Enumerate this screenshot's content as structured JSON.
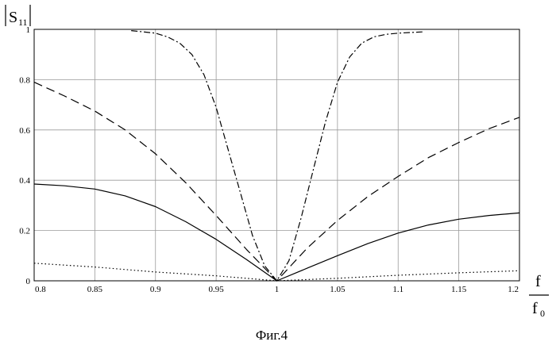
{
  "chart_data": {
    "type": "line",
    "ylabel": "|S11|",
    "ylabel_main": "S",
    "ylabel_sub": "11",
    "xlabel_num": "f",
    "xlabel_den": "f",
    "xlabel_den_sub": "0",
    "xlim": [
      0.8,
      1.2
    ],
    "ylim": [
      0,
      1
    ],
    "grid": true,
    "x_ticks": [
      "0.8",
      "0.85",
      "0.9",
      "0.95",
      "1",
      "1.05",
      "1.1",
      "1.15",
      "1.2"
    ],
    "y_ticks": [
      "0",
      "0.2",
      "0.4",
      "0.6",
      "0.8",
      "1"
    ],
    "series": [
      {
        "style": "solid",
        "x": [
          0.8,
          0.825,
          0.85,
          0.875,
          0.9,
          0.925,
          0.95,
          0.975,
          1.0,
          1.025,
          1.05,
          1.075,
          1.1,
          1.125,
          1.15,
          1.175,
          1.2
        ],
        "y": [
          0.385,
          0.378,
          0.365,
          0.338,
          0.295,
          0.235,
          0.165,
          0.085,
          0.0,
          0.05,
          0.1,
          0.148,
          0.19,
          0.222,
          0.245,
          0.26,
          0.27
        ]
      },
      {
        "style": "dash",
        "x": [
          0.8,
          0.825,
          0.85,
          0.875,
          0.9,
          0.925,
          0.95,
          0.975,
          1.0,
          1.025,
          1.05,
          1.075,
          1.1,
          1.125,
          1.15,
          1.175,
          1.2
        ],
        "y": [
          0.79,
          0.735,
          0.675,
          0.6,
          0.505,
          0.39,
          0.26,
          0.125,
          0.0,
          0.13,
          0.24,
          0.335,
          0.415,
          0.49,
          0.55,
          0.605,
          0.65
        ]
      },
      {
        "style": "dashdot",
        "x": [
          0.88,
          0.9,
          0.91,
          0.92,
          0.93,
          0.94,
          0.95,
          0.96,
          0.97,
          0.98,
          0.99,
          1.0,
          1.01,
          1.02,
          1.03,
          1.04,
          1.05,
          1.06,
          1.07,
          1.08,
          1.09,
          1.1,
          1.12
        ],
        "y": [
          0.995,
          0.985,
          0.97,
          0.945,
          0.9,
          0.82,
          0.69,
          0.52,
          0.35,
          0.18,
          0.06,
          0.0,
          0.08,
          0.25,
          0.44,
          0.63,
          0.79,
          0.89,
          0.945,
          0.97,
          0.98,
          0.985,
          0.99
        ]
      },
      {
        "style": "dotted",
        "x": [
          0.8,
          0.85,
          0.9,
          0.95,
          1.0,
          1.05,
          1.1,
          1.15,
          1.2
        ],
        "y": [
          0.07,
          0.055,
          0.035,
          0.02,
          0.0,
          0.01,
          0.022,
          0.032,
          0.04
        ]
      }
    ]
  },
  "caption": "Фиг.4",
  "colors": {
    "line": "#000000",
    "grid": "#9a9a9a",
    "axis": "#000000"
  }
}
